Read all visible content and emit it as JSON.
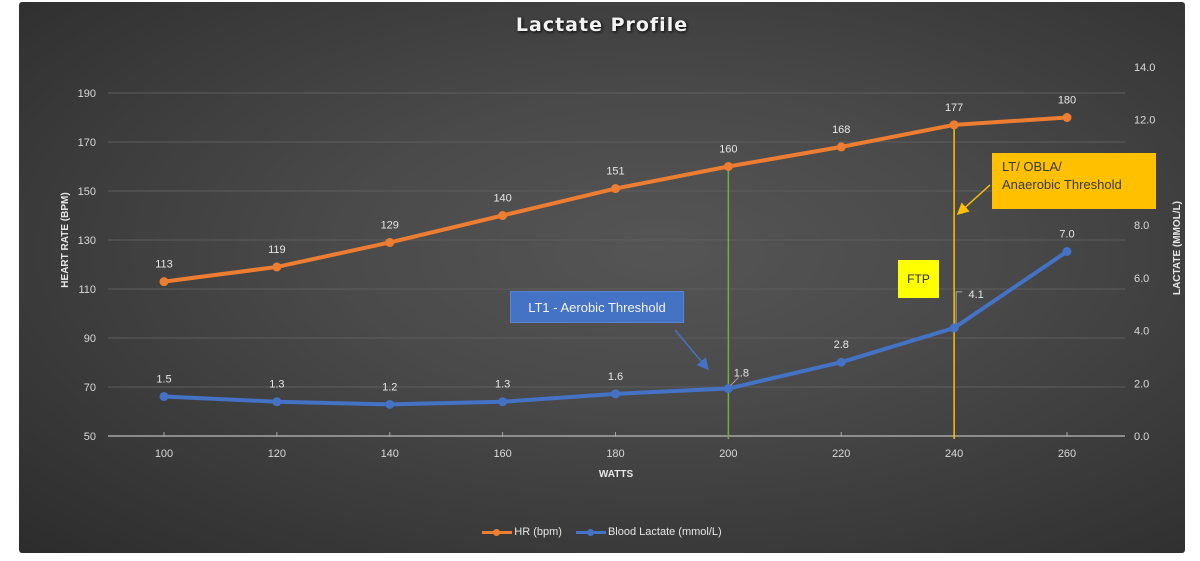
{
  "chart_data": {
    "type": "line",
    "title": "Lactate Profile",
    "xlabel": "WATTS",
    "ylabel": "HEART RATE (BPM)",
    "y2label": "LACTATE (MMOL/L)",
    "x": [
      100,
      120,
      140,
      160,
      180,
      200,
      220,
      240,
      260
    ],
    "x_ticks": [
      "100",
      "120",
      "140",
      "160",
      "180",
      "200",
      "220",
      "240",
      "260"
    ],
    "ylim": [
      50,
      190
    ],
    "y_ticks": [
      "50",
      "70",
      "90",
      "110",
      "130",
      "150",
      "170",
      "190"
    ],
    "y2lim": [
      0,
      14
    ],
    "y2_ticks": [
      "0.0",
      "2.0",
      "4.0",
      "6.0",
      "8.0",
      "12.0",
      "14.0"
    ],
    "grid": true,
    "legend_position": "bottom",
    "series": [
      {
        "name": "HR (bpm)",
        "axis": "left",
        "color": "#ed7d31",
        "values": [
          113,
          119,
          129,
          140,
          151,
          160,
          168,
          177,
          180
        ],
        "labels": [
          "113",
          "119",
          "129",
          "140",
          "151",
          "160",
          "168",
          "177",
          "180"
        ]
      },
      {
        "name": "Blood Lactate (mmol/L)",
        "axis": "right",
        "color": "#4472c4",
        "values": [
          1.5,
          1.3,
          1.2,
          1.3,
          1.6,
          1.8,
          2.8,
          4.1,
          7.0
        ],
        "labels": [
          "1.5",
          "1.3",
          "1.2",
          "1.3",
          "1.6",
          "1.8",
          "2.8",
          "4.1",
          "7.0"
        ]
      }
    ],
    "annotations": [
      {
        "text": "LT1 - Aerobic Threshold",
        "x": 200,
        "line_color": "#70ad47",
        "box_color": "#4472c4"
      },
      {
        "text": "LT/ OBLA/ Anaerobic Threshold",
        "x": 240,
        "line_color": "#ffc000",
        "box_color": "#ffc000"
      },
      {
        "text": "FTP",
        "x": 240,
        "box_color": "#ffff00"
      }
    ]
  },
  "annotations": {
    "lt1": "LT1 - Aerobic Threshold",
    "lt2_line1": "LT/ OBLA/",
    "lt2_line2": "Anaerobic Threshold",
    "ftp": "FTP"
  },
  "legend": {
    "hr": "HR (bpm)",
    "lactate": "Blood Lactate (mmol/L)"
  },
  "colors": {
    "hr": "#ed7d31",
    "lactate": "#4472c4",
    "lt1_line": "#70ad47",
    "lt2_line": "#ffc000",
    "ftp_box": "#ffff00"
  }
}
